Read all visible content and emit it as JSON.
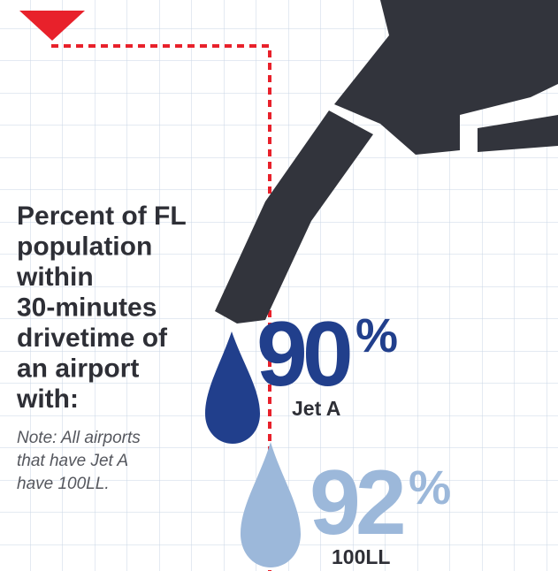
{
  "title": [
    "Percent of FL",
    "population",
    "within",
    "30-minutes",
    "drivetime of",
    "an airport",
    "with:"
  ],
  "note": [
    "Note: All airports",
    "that have Jet A",
    "have 100LL."
  ],
  "items": [
    {
      "value": "90",
      "unit": "%",
      "label": "Jet A"
    },
    {
      "value": "92",
      "unit": "%",
      "label": "100LL"
    }
  ]
}
